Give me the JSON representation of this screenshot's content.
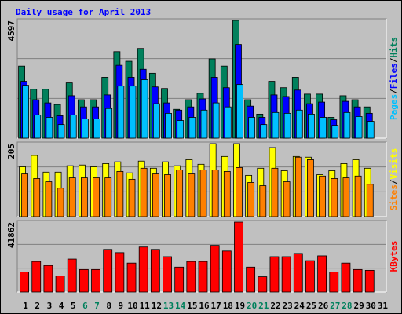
{
  "title": "Daily usage for April 2013",
  "chart_data": [
    {
      "type": "bar",
      "ylim": [
        0,
        4597
      ],
      "yticks": [
        4597
      ],
      "grid": true,
      "legend_separator": "/",
      "series": [
        {
          "name": "Hits",
          "color": "#00805c",
          "values": [
            2814,
            1908,
            1908,
            1313,
            2158,
            1501,
            1501,
            2377,
            3377,
            3002,
            3502,
            2533,
            1939,
            1126,
            1501,
            1751,
            3096,
            2814,
            4597,
            1501,
            938,
            2220,
            1970,
            2377,
            1720,
            1720,
            813,
            1657,
            1501,
            1220,
            null
          ]
        },
        {
          "name": "Files",
          "color": "#0000ff",
          "values": [
            2220,
            1501,
            1376,
            876,
            1657,
            1220,
            1220,
            1689,
            2846,
            2377,
            2689,
            2001,
            1376,
            1094,
            1220,
            1532,
            2377,
            1970,
            3659,
            1251,
            813,
            1689,
            1626,
            1876,
            1345,
            1407,
            719,
            1438,
            1220,
            969,
            null
          ]
        },
        {
          "name": "Pages",
          "color": "#00c0ff",
          "values": [
            2064,
            907,
            813,
            532,
            907,
            750,
            750,
            1157,
            2033,
            2033,
            2283,
            1345,
            969,
            688,
            813,
            1094,
            1376,
            1220,
            2095,
            813,
            532,
            1001,
            969,
            1094,
            938,
            813,
            500,
            1001,
            844,
            657,
            null
          ]
        }
      ]
    },
    {
      "type": "bar",
      "ylim": [
        0,
        205
      ],
      "yticks": [
        205
      ],
      "grid": true,
      "legend_separator": "/",
      "series": [
        {
          "name": "Visits",
          "color": "#ffff00",
          "values": [
            140,
            172,
            125,
            125,
            143,
            145,
            140,
            149,
            154,
            123,
            156,
            136,
            154,
            143,
            160,
            147,
            205,
            169,
            205,
            116,
            136,
            194,
            129,
            169,
            167,
            118,
            129,
            149,
            160,
            136,
            null
          ]
        },
        {
          "name": "Sites",
          "color": "#ff8000",
          "values": [
            120,
            107,
            98,
            80,
            109,
            109,
            109,
            109,
            127,
            105,
            136,
            120,
            118,
            131,
            120,
            131,
            131,
            127,
            138,
            96,
            87,
            136,
            98,
            167,
            160,
            114,
            107,
            109,
            114,
            91,
            null
          ]
        }
      ]
    },
    {
      "type": "bar",
      "ylim": [
        0,
        41862
      ],
      "yticks": [
        41862
      ],
      "grid": true,
      "categories": [
        "1",
        "2",
        "3",
        "4",
        "5",
        "6",
        "7",
        "8",
        "9",
        "10",
        "11",
        "12",
        "13",
        "14",
        "15",
        "16",
        "17",
        "18",
        "19",
        "20",
        "21",
        "22",
        "23",
        "24",
        "25",
        "26",
        "27",
        "28",
        "29",
        "30",
        "31"
      ],
      "category_colors": [
        "#000000",
        "#000000",
        "#000000",
        "#000000",
        "#000000",
        "#00805c",
        "#00805c",
        "#000000",
        "#000000",
        "#000000",
        "#000000",
        "#000000",
        "#00805c",
        "#00805c",
        "#000000",
        "#000000",
        "#000000",
        "#000000",
        "#000000",
        "#00805c",
        "#00805c",
        "#000000",
        "#000000",
        "#000000",
        "#000000",
        "#000000",
        "#00805c",
        "#00805c",
        "#000000",
        "#000000",
        "#000000"
      ],
      "series": [
        {
          "name": "KBytes",
          "color": "#ff0000",
          "values": [
            12030,
            18286,
            15880,
            9624,
            19730,
            13474,
            13474,
            25504,
            23579,
            17323,
            26947,
            25504,
            21173,
            14917,
            18286,
            18286,
            27910,
            24541,
            41862,
            14917,
            9143,
            21173,
            21173,
            23098,
            18767,
            21654,
            12030,
            17323,
            13474,
            12992,
            null
          ]
        }
      ]
    }
  ]
}
